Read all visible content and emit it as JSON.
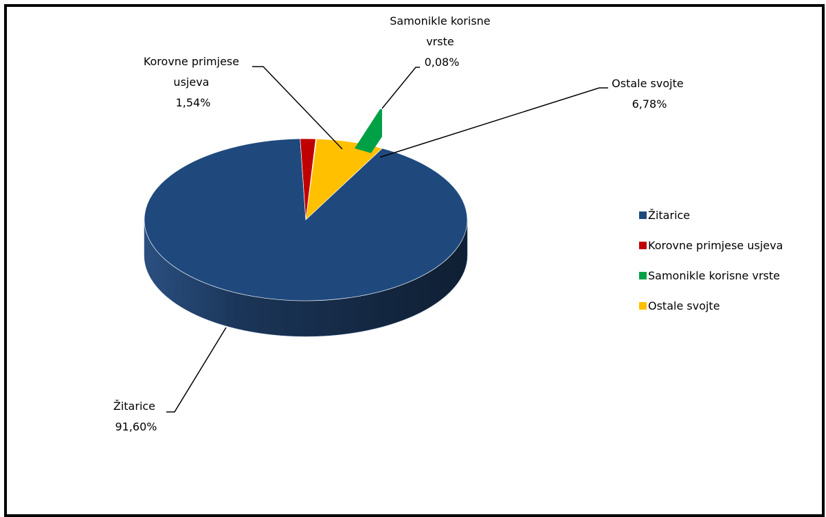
{
  "chart_data": {
    "type": "pie",
    "title": "",
    "categories": [
      "Žitarice",
      "Korovne primjese usjeva",
      "Samonikle korisne vrste",
      "Ostale svojte"
    ],
    "values": [
      91.6,
      1.54,
      0.08,
      6.78
    ],
    "colors": [
      "#1F497D",
      "#C00000",
      "#00A046",
      "#FFC000"
    ],
    "data_labels": [
      {
        "lines": [
          "Žitarice",
          "91,60%"
        ]
      },
      {
        "lines": [
          "Korovne primjese",
          "usjeva",
          "1,54%"
        ]
      },
      {
        "lines": [
          "Samonikle korisne",
          "vrste",
          "0,08%"
        ]
      },
      {
        "lines": [
          "Ostale svojte",
          "6,78%"
        ]
      }
    ],
    "legend": {
      "position": "right",
      "entries": [
        "Žitarice",
        "Korovne primjese usjeva",
        "Samonikle korisne vrste",
        "Ostale svojte"
      ]
    },
    "style": "3d-exploded"
  }
}
